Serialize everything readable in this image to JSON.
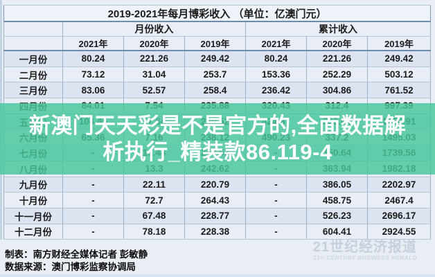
{
  "title": "2019-2021年每月博彩收入 （单位：亿澳门元）",
  "table": {
    "group_headers": [
      {
        "label": "月份收入",
        "span": 3
      },
      {
        "label": "累计收入",
        "span": 3
      }
    ],
    "year_headers": [
      "2021年",
      "2020年",
      "2019年",
      "2021年",
      "2020年",
      "2019年"
    ],
    "rows": [
      {
        "label": "一月份",
        "values": [
          "80.24",
          "221.26",
          "249.42",
          "80.24",
          "221.26",
          "249.42"
        ]
      },
      {
        "label": "二月份",
        "values": [
          "73.12",
          "31.04",
          "253.7",
          "153.36",
          "252.29",
          "503.12"
        ]
      },
      {
        "label": "三月份",
        "values": [
          "83.06",
          "52.57",
          "258.4",
          "236.42",
          "304.86",
          "761.52"
        ]
      },
      {
        "label": "四月份",
        "values": [
          "84.01",
          "7.54",
          "235.88",
          "320.43",
          "312.4",
          "997.39"
        ]
      },
      {
        "label": "五月份",
        "values": [
          "104.45",
          "17.64",
          "259.52",
          "424.87",
          "330.04",
          "1256.91"
        ]
      },
      {
        "label": "六月份",
        "values": [
          "65.36",
          "7.16",
          "238.12",
          "490.23",
          "337.2",
          "1495.03"
        ]
      },
      {
        "label": "七月份",
        "values": [
          "-",
          "13.44",
          "244.53",
          "-",
          "350.64",
          "1739.56"
        ]
      },
      {
        "label": "八月份",
        "values": [
          "-",
          "13.3",
          "242.62",
          "-",
          "363.94",
          "1982.18"
        ]
      },
      {
        "label": "九月份",
        "values": [
          "-",
          "22.11",
          "220.79",
          "-",
          "386.05",
          "2202.97"
        ]
      },
      {
        "label": "十月份",
        "values": [
          "-",
          "72.7",
          "264.43",
          "-",
          "458.75",
          "2467.4"
        ]
      },
      {
        "label": "十一月份",
        "values": [
          "-",
          "67.48",
          "228.77",
          "-",
          "526.23",
          "2696.17"
        ]
      },
      {
        "label": "十二月份",
        "values": [
          "-",
          "78.18",
          "228.38",
          "-",
          "604.41",
          "2924.55"
        ]
      }
    ]
  },
  "watermark": {
    "line1": "新澳门天天彩是不是官方的,全面数据解",
    "line2": "析执行_精装款86.119-4",
    "full_text": "新澳门天天彩是不是官方的,全面数据解析执行_精装款86.119-4",
    "background_color": "#48c79c",
    "text_color": "#ffffff"
  },
  "footer": {
    "credit": "制表：南方财经全媒体记者 彭敏静",
    "source": "数据来源：澳门博彩监察协调局"
  },
  "logo": {
    "cn": "21世纪经济报道",
    "en": "21ˢᵗ CENTURY BUSINESS HERALD"
  },
  "colors": {
    "page_background": "#e9edf4",
    "row_odd": "#dde4f1",
    "row_even": "#e9edf6",
    "header_background": "#e9edf5",
    "border_dark": "#6c8cac",
    "border_light": "#9db0c8"
  },
  "chart_data": {
    "type": "table",
    "title": "2019-2021年每月博彩收入（单位：亿澳门元）",
    "categories": [
      "一月份",
      "二月份",
      "三月份",
      "四月份",
      "五月份",
      "六月份",
      "七月份",
      "八月份",
      "九月份",
      "十月份",
      "十一月份",
      "十二月份"
    ],
    "series": [
      {
        "name": "月份收入 2021年",
        "values": [
          80.24,
          73.12,
          83.06,
          84.01,
          104.45,
          65.36,
          null,
          null,
          null,
          null,
          null,
          null
        ]
      },
      {
        "name": "月份收入 2020年",
        "values": [
          221.26,
          31.04,
          52.57,
          7.54,
          17.64,
          7.16,
          13.44,
          13.3,
          22.11,
          72.7,
          67.48,
          78.18
        ]
      },
      {
        "name": "月份收入 2019年",
        "values": [
          249.42,
          253.7,
          258.4,
          235.88,
          259.52,
          238.12,
          244.53,
          242.62,
          220.79,
          264.43,
          228.77,
          228.38
        ]
      },
      {
        "name": "累计收入 2021年",
        "values": [
          80.24,
          153.36,
          236.42,
          320.43,
          424.87,
          490.23,
          null,
          null,
          null,
          null,
          null,
          null
        ]
      },
      {
        "name": "累计收入 2020年",
        "values": [
          221.26,
          252.29,
          304.86,
          312.4,
          330.04,
          337.2,
          350.64,
          363.94,
          386.05,
          458.75,
          526.23,
          604.41
        ]
      },
      {
        "name": "累计收入 2019年",
        "values": [
          249.42,
          503.12,
          761.52,
          997.39,
          1256.91,
          1495.03,
          1739.56,
          1982.18,
          2202.97,
          2467.4,
          2696.17,
          2924.55
        ]
      }
    ],
    "missing_value_marker": "-",
    "unit": "亿澳门元"
  }
}
